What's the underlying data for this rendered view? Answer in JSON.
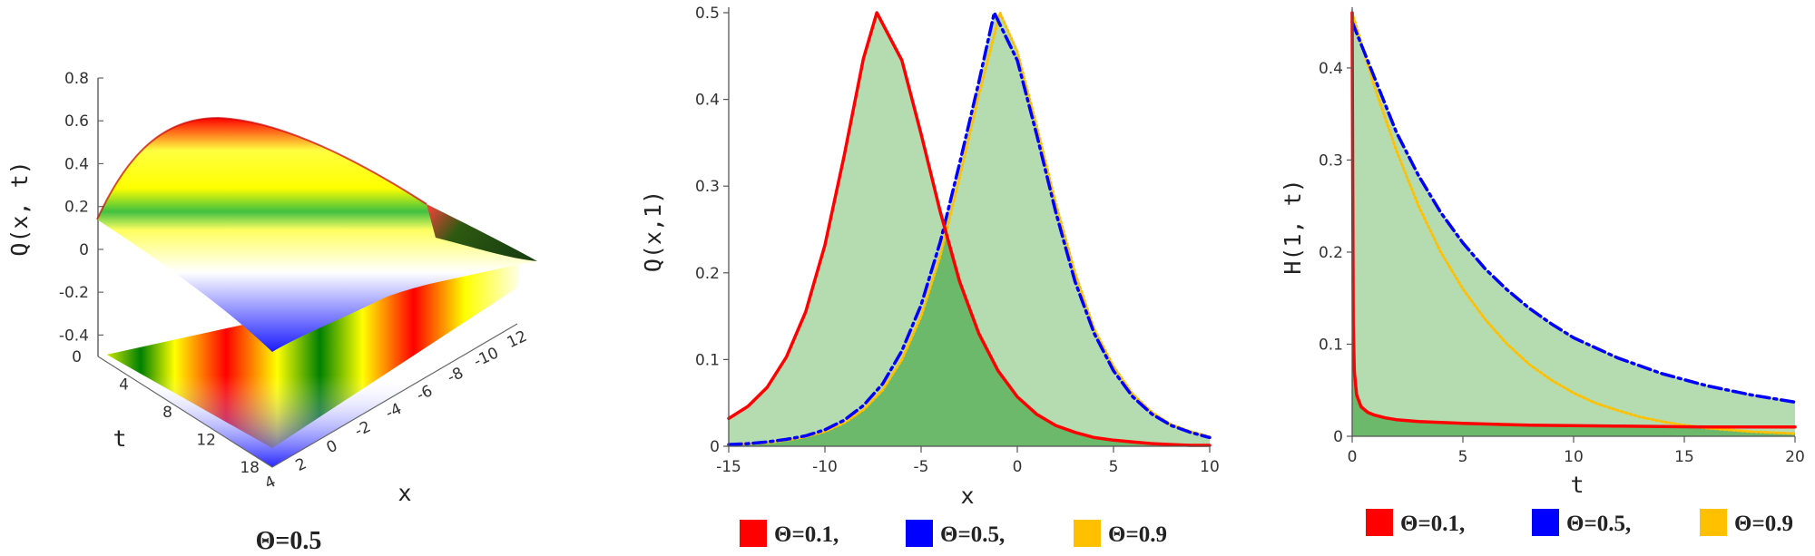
{
  "colors": {
    "theta_0_1": "#ff0000",
    "theta_0_5": "#0000ff",
    "theta_0_9": "#ffc000",
    "fill_light": "#b5dcb1",
    "fill_dark": "#5fb35f"
  },
  "chart_data": [
    {
      "type": "surface",
      "zlabel": "Q(x, t)",
      "tlabel": "t",
      "xlabel": "x",
      "caption": "Θ=0.5",
      "z_ticks": [
        "0.8",
        "0.6",
        "0.4",
        "0.2",
        "0",
        "-0.2",
        "-0.4"
      ],
      "t_ticks": [
        "0",
        "4",
        "8",
        "12",
        "18"
      ],
      "x_ticks": [
        "4",
        "2",
        "0",
        "-2",
        "-4",
        "-6",
        "-8",
        "-10",
        "12"
      ],
      "surface_colors": [
        "#ff0000",
        "#ffff00",
        "#00a000",
        "#0000ff",
        "#ffffff"
      ]
    },
    {
      "type": "area",
      "xlabel": "x",
      "ylabel": "Q(x,1)",
      "xlim": [
        -15,
        10
      ],
      "ylim": [
        0,
        0.5
      ],
      "x_ticks": [
        "-15",
        "-10",
        "-5",
        "0",
        "5",
        "10"
      ],
      "y_ticks": [
        "0",
        "0.1",
        "0.2",
        "0.3",
        "0.4",
        "0.5"
      ],
      "series": [
        {
          "name": "Θ=0.1,",
          "style": "solid",
          "color": "#ff0000",
          "x": [
            -15,
            -14,
            -13,
            -12,
            -11,
            -10,
            -9,
            -8,
            -7.3,
            -6,
            -5,
            -4,
            -3,
            -2,
            -1,
            0,
            1,
            2,
            3,
            4,
            5,
            6,
            7,
            8,
            9,
            10
          ],
          "y": [
            0.032,
            0.046,
            0.068,
            0.103,
            0.155,
            0.232,
            0.335,
            0.447,
            0.5,
            0.445,
            0.36,
            0.27,
            0.19,
            0.13,
            0.087,
            0.057,
            0.037,
            0.024,
            0.016,
            0.01,
            0.007,
            0.005,
            0.003,
            0.002,
            0.001,
            0.001
          ]
        },
        {
          "name": "Θ=0.5,",
          "style": "dashdot",
          "color": "#0000ff",
          "x": [
            -15,
            -14,
            -13,
            -12,
            -11,
            -10,
            -9,
            -8,
            -7,
            -6,
            -5,
            -4,
            -3,
            -2,
            -1.2,
            0,
            1,
            2,
            3,
            4,
            5,
            6,
            7,
            8,
            9,
            10
          ],
          "y": [
            0.002,
            0.003,
            0.005,
            0.008,
            0.012,
            0.019,
            0.03,
            0.047,
            0.072,
            0.11,
            0.163,
            0.236,
            0.326,
            0.42,
            0.5,
            0.445,
            0.36,
            0.27,
            0.19,
            0.13,
            0.087,
            0.057,
            0.037,
            0.024,
            0.016,
            0.01
          ]
        },
        {
          "name": "Θ=0.9",
          "style": "dotted",
          "color": "#ffc000",
          "x": [
            -15,
            -14,
            -13,
            -12,
            -11,
            -10,
            -9,
            -8,
            -7,
            -6,
            -5,
            -4,
            -3,
            -2,
            -0.9,
            0,
            1,
            2,
            3,
            4,
            5,
            6,
            7,
            8,
            9,
            10
          ],
          "y": [
            0.002,
            0.003,
            0.004,
            0.007,
            0.011,
            0.017,
            0.027,
            0.042,
            0.065,
            0.1,
            0.15,
            0.22,
            0.31,
            0.405,
            0.5,
            0.455,
            0.37,
            0.28,
            0.2,
            0.135,
            0.092,
            0.06,
            0.039,
            0.025,
            0.017,
            0.011
          ]
        }
      ],
      "legend": [
        "Θ=0.1,",
        "Θ=0.5,",
        "Θ=0.9"
      ]
    },
    {
      "type": "area",
      "xlabel": "t",
      "ylabel": "H(1, t)",
      "xlim": [
        0,
        20
      ],
      "ylim": [
        0,
        0.46
      ],
      "x_ticks": [
        "0",
        "5",
        "10",
        "15",
        "20"
      ],
      "y_ticks": [
        "0",
        "0.1",
        "0.2",
        "0.3",
        "0.4"
      ],
      "series": [
        {
          "name": "Θ=0.1,",
          "style": "solid",
          "color": "#ff0000",
          "x": [
            0,
            0.02,
            0.05,
            0.1,
            0.2,
            0.4,
            0.7,
            1,
            1.5,
            2,
            3,
            5,
            8,
            12,
            16,
            20
          ],
          "y": [
            0.46,
            0.3,
            0.12,
            0.07,
            0.045,
            0.032,
            0.026,
            0.023,
            0.02,
            0.018,
            0.016,
            0.014,
            0.012,
            0.011,
            0.01,
            0.01
          ]
        },
        {
          "name": "Θ=0.5,",
          "style": "dashdot",
          "color": "#0000ff",
          "x": [
            0,
            1,
            2,
            3,
            4,
            5,
            6,
            7,
            8,
            9,
            10,
            12,
            14,
            16,
            18,
            20
          ],
          "y": [
            0.45,
            0.39,
            0.33,
            0.283,
            0.243,
            0.21,
            0.182,
            0.159,
            0.139,
            0.122,
            0.107,
            0.085,
            0.068,
            0.055,
            0.045,
            0.037
          ]
        },
        {
          "name": "Θ=0.9",
          "style": "dotted",
          "color": "#ffc000",
          "x": [
            0,
            1,
            2,
            3,
            4,
            5,
            6,
            7,
            8,
            9,
            10,
            11,
            12,
            13,
            14,
            15,
            16,
            18,
            20
          ],
          "y": [
            0.46,
            0.38,
            0.31,
            0.25,
            0.2,
            0.16,
            0.127,
            0.1,
            0.078,
            0.061,
            0.047,
            0.036,
            0.028,
            0.021,
            0.016,
            0.012,
            0.009,
            0.005,
            0.003
          ]
        }
      ],
      "legend": [
        "Θ=0.1,",
        "Θ=0.5,",
        "Θ=0.9"
      ]
    }
  ]
}
